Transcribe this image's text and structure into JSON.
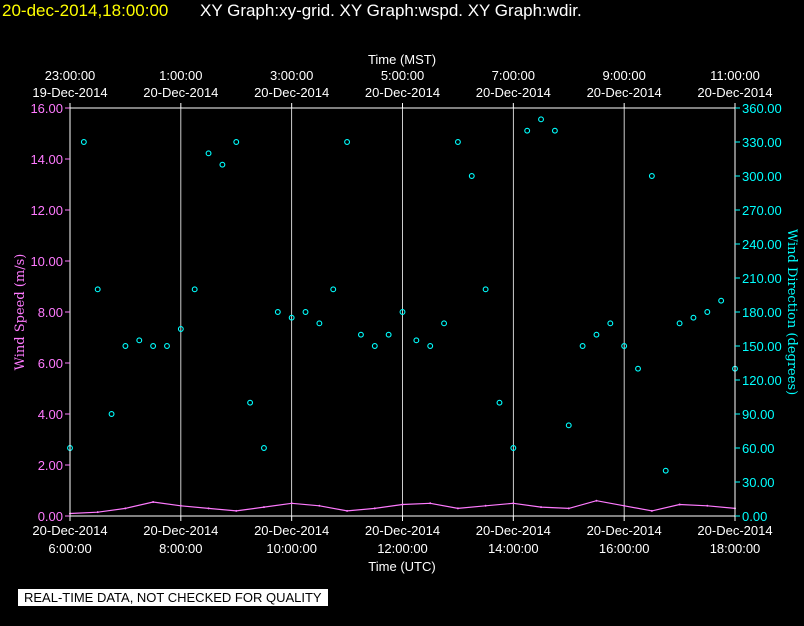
{
  "header": {
    "date": "20-dec-2014,18:00:00",
    "title": "XY Graph:xy-grid.  XY Graph:wspd.  XY Graph:wdir."
  },
  "footer": {
    "disclaimer": "REAL-TIME DATA, NOT CHECKED FOR QUALITY"
  },
  "colors": {
    "background": "#000000",
    "speed": "#ff7aff",
    "direction": "#00ffff",
    "frame": "#ffffff",
    "date_text": "#ffff00"
  },
  "chart_data": {
    "type": "scatter",
    "title": "",
    "top_axis_label": "Time (MST)",
    "bottom_axis_label": "Time (UTC)",
    "ylabel_left": "Wind Speed (m/s)",
    "ylabel_right": "Wind Direction (degrees)",
    "ylim_left": [
      0,
      16
    ],
    "ylim_right": [
      0,
      360
    ],
    "x_hours_utc_range": [
      6,
      18
    ],
    "grid": "vertical lines every 2 hours",
    "yticks_left": [
      "0.00",
      "2.00",
      "4.00",
      "6.00",
      "8.00",
      "10.00",
      "12.00",
      "14.00",
      "16.00"
    ],
    "yticks_right": [
      "0.00",
      "30.00",
      "60.00",
      "90.00",
      "120.00",
      "150.00",
      "180.00",
      "210.00",
      "240.00",
      "270.00",
      "300.00",
      "330.00",
      "360.00"
    ],
    "xticks_bottom": [
      {
        "date": "20-Dec-2014",
        "time": "6:00:00"
      },
      {
        "date": "20-Dec-2014",
        "time": "8:00:00"
      },
      {
        "date": "20-Dec-2014",
        "time": "10:00:00"
      },
      {
        "date": "20-Dec-2014",
        "time": "12:00:00"
      },
      {
        "date": "20-Dec-2014",
        "time": "14:00:00"
      },
      {
        "date": "20-Dec-2014",
        "time": "16:00:00"
      },
      {
        "date": "20-Dec-2014",
        "time": "18:00:00"
      }
    ],
    "xticks_top": [
      {
        "time": "23:00:00",
        "date": "19-Dec-2014"
      },
      {
        "time": "1:00:00",
        "date": "20-Dec-2014"
      },
      {
        "time": "3:00:00",
        "date": "20-Dec-2014"
      },
      {
        "time": "5:00:00",
        "date": "20-Dec-2014"
      },
      {
        "time": "7:00:00",
        "date": "20-Dec-2014"
      },
      {
        "time": "9:00:00",
        "date": "20-Dec-2014"
      },
      {
        "time": "11:00:00",
        "date": "20-Dec-2014"
      }
    ],
    "series": [
      {
        "name": "Wind Speed (m/s)",
        "axis": "left",
        "style": "line",
        "x_hours_utc": [
          6.0,
          6.5,
          7.0,
          7.5,
          8.0,
          8.5,
          9.0,
          9.5,
          10.0,
          10.5,
          11.0,
          11.5,
          12.0,
          12.5,
          13.0,
          13.5,
          14.0,
          14.5,
          15.0,
          15.5,
          16.0,
          16.5,
          17.0,
          17.5,
          18.0
        ],
        "values": [
          0.1,
          0.15,
          0.3,
          0.55,
          0.4,
          0.3,
          0.2,
          0.35,
          0.5,
          0.4,
          0.2,
          0.3,
          0.45,
          0.5,
          0.3,
          0.4,
          0.5,
          0.35,
          0.3,
          0.6,
          0.4,
          0.2,
          0.45,
          0.4,
          0.3
        ]
      },
      {
        "name": "Wind Direction (degrees)",
        "axis": "right",
        "style": "markers",
        "x_hours_utc": [
          6.0,
          6.25,
          6.5,
          6.75,
          7.0,
          7.25,
          7.5,
          7.75,
          8.0,
          8.25,
          8.5,
          8.75,
          9.0,
          9.25,
          9.5,
          9.75,
          10.0,
          10.25,
          10.5,
          10.75,
          11.0,
          11.25,
          11.5,
          11.75,
          12.0,
          12.25,
          12.5,
          12.75,
          13.0,
          13.25,
          13.5,
          13.75,
          14.0,
          14.25,
          14.5,
          14.75,
          15.0,
          15.25,
          15.5,
          15.75,
          16.0,
          16.25,
          16.5,
          16.75,
          17.0,
          17.25,
          17.5,
          17.75,
          18.0
        ],
        "values": [
          60,
          330,
          200,
          90,
          150,
          155,
          150,
          150,
          165,
          200,
          320,
          310,
          330,
          100,
          60,
          180,
          175,
          180,
          170,
          200,
          330,
          160,
          150,
          160,
          180,
          155,
          150,
          170,
          330,
          300,
          200,
          100,
          60,
          340,
          350,
          340,
          80,
          150,
          160,
          170,
          150,
          130,
          300,
          40,
          170,
          175,
          180,
          190,
          130
        ]
      }
    ]
  }
}
